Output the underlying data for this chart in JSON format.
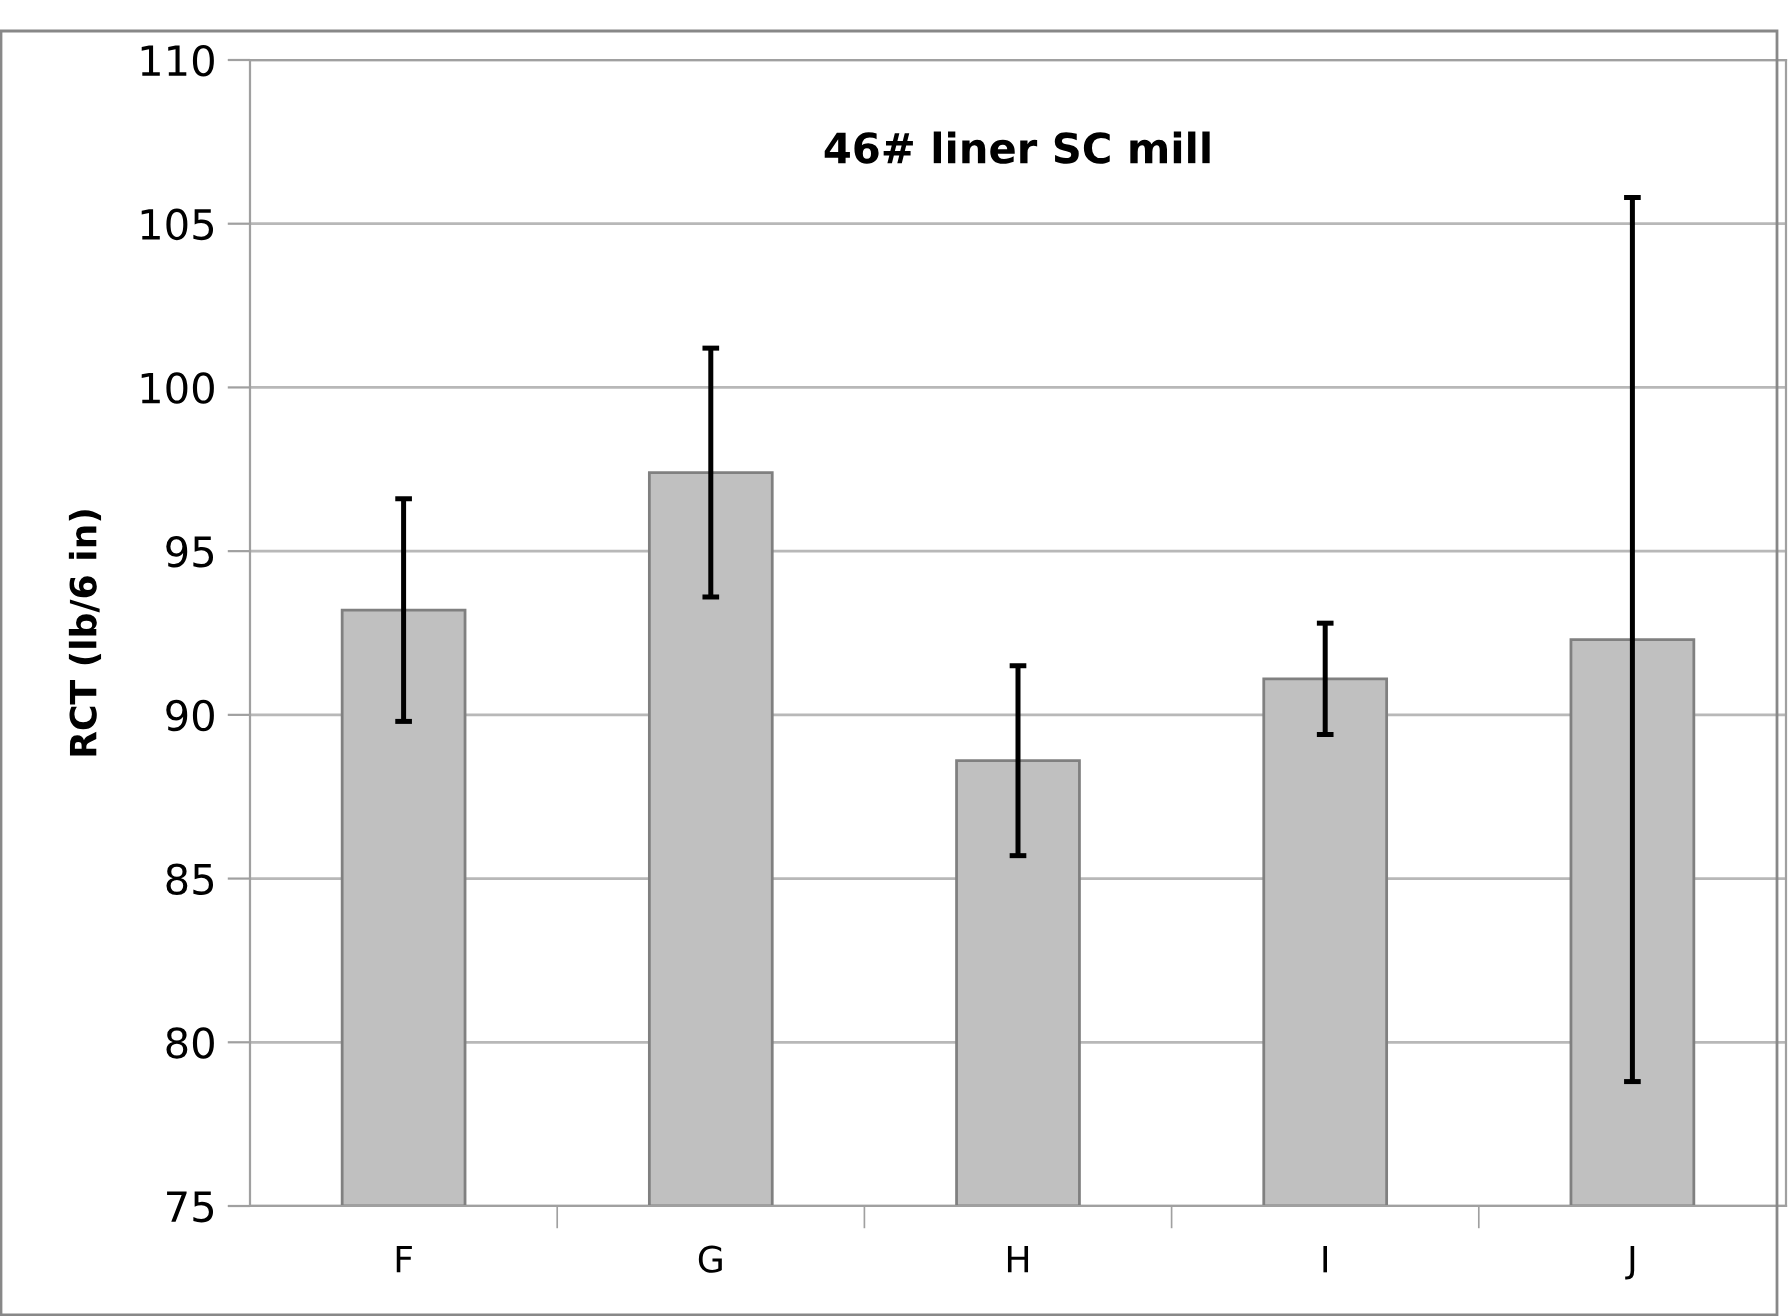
{
  "chart_data": {
    "type": "bar",
    "title": "46# liner SC mill",
    "ylabel": "RCT (lb/6 in)",
    "categories": [
      "F",
      "G",
      "H",
      "I",
      "J"
    ],
    "values": [
      93.2,
      97.4,
      88.6,
      91.1,
      92.3
    ],
    "errors": [
      3.4,
      3.8,
      2.9,
      1.7,
      13.5
    ],
    "color": "#c0c0c0",
    "ylim": [
      75,
      110
    ],
    "yticks": [
      75,
      80,
      85,
      90,
      95,
      100,
      105,
      110
    ],
    "grid": "y"
  }
}
